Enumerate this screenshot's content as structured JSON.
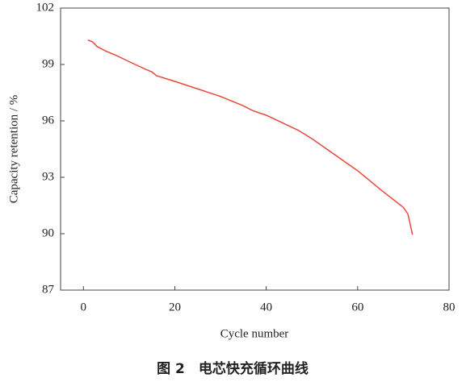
{
  "chart_data": {
    "type": "line",
    "caption": "图 2　电芯快充循环曲线",
    "x_label": "Cycle number",
    "y_label": "Capacity retention / %",
    "x": [
      1,
      2,
      3,
      5,
      7,
      10,
      14,
      15,
      16,
      20,
      30,
      35,
      37,
      40,
      47,
      50,
      55,
      60,
      65,
      70,
      71,
      72
    ],
    "series": [
      {
        "name": "Capacity retention",
        "color": "#e8473c",
        "values": [
          100.3,
          100.2,
          99.95,
          99.7,
          99.5,
          99.15,
          98.7,
          98.6,
          98.4,
          98.1,
          97.3,
          96.8,
          96.55,
          96.3,
          95.5,
          95.05,
          94.2,
          93.35,
          92.35,
          91.4,
          91.05,
          89.95
        ]
      }
    ],
    "xlim": [
      -5,
      80
    ],
    "xticks": [
      0,
      20,
      40,
      60,
      80
    ],
    "ylim": [
      87,
      102
    ],
    "yticks": [
      87,
      90,
      93,
      96,
      99,
      102
    ]
  }
}
